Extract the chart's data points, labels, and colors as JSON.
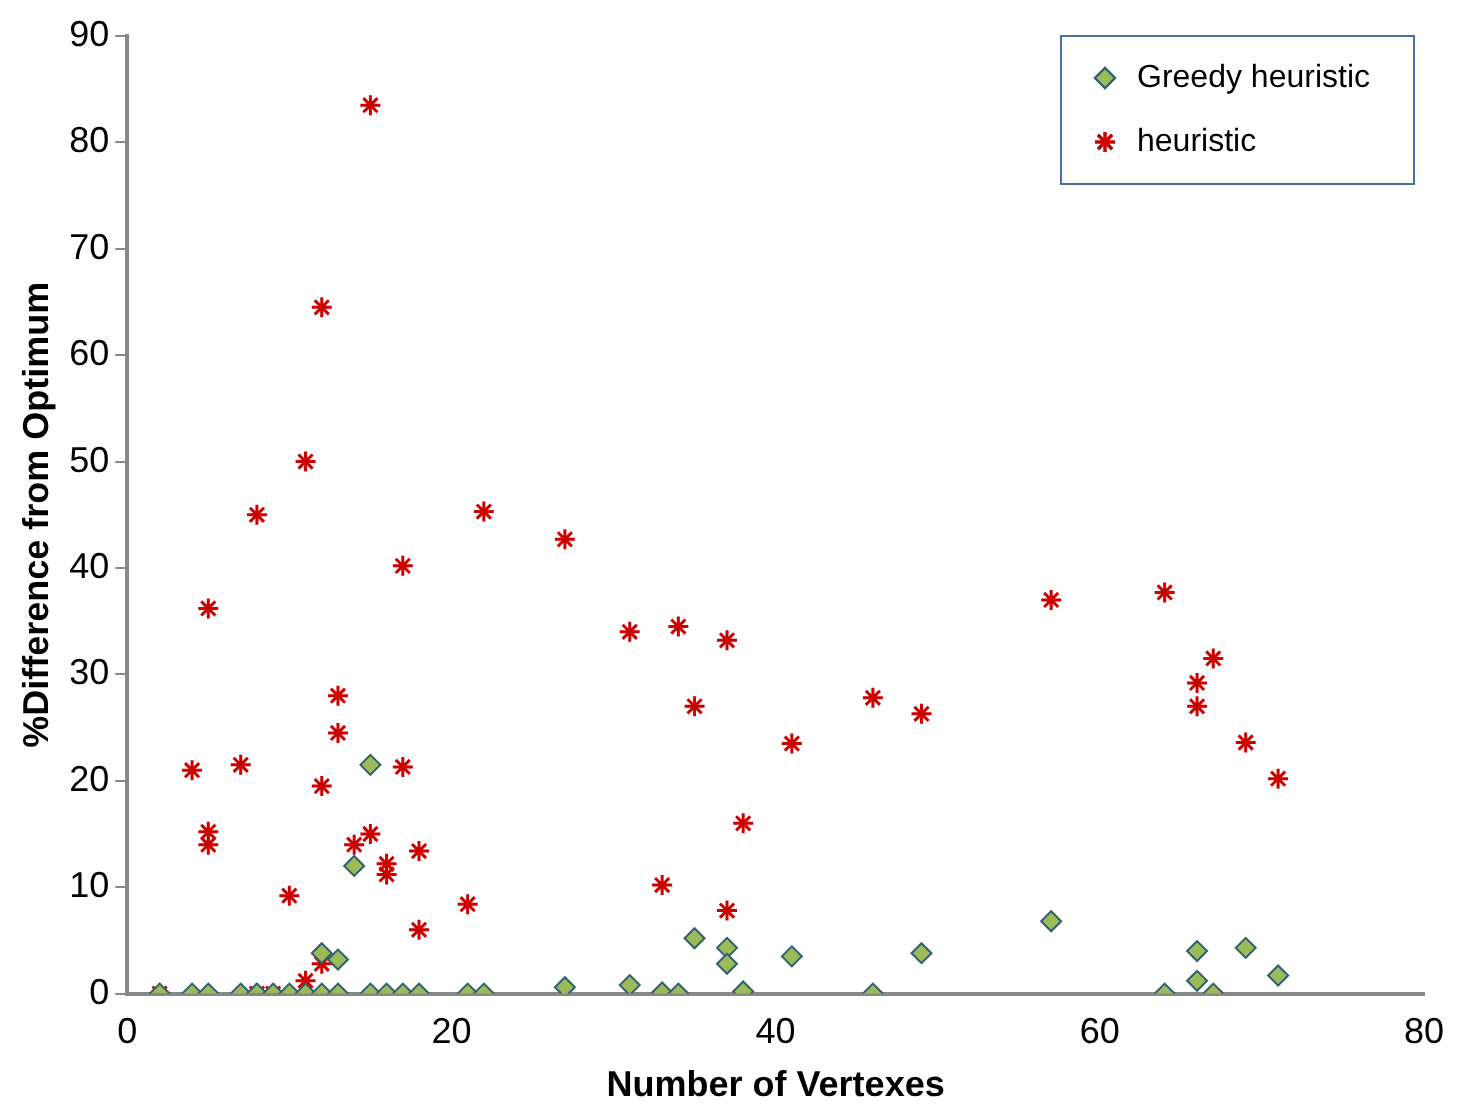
{
  "chart_data": {
    "type": "scatter",
    "xlabel": "Number of Vertexes",
    "ylabel": "%Difference from Optimum",
    "xlim": [
      0,
      80
    ],
    "xticks": [
      0,
      20,
      40,
      60,
      80
    ],
    "ylim": [
      0,
      90
    ],
    "yticks": [
      0,
      10,
      20,
      30,
      40,
      50,
      60,
      70,
      80,
      90
    ],
    "grid": false,
    "legend": "top right",
    "series": [
      {
        "name": "Greedy heuristic",
        "color": "#9bbb59",
        "marker": "diamond",
        "x": [
          2,
          4,
          5,
          7,
          8,
          9,
          10,
          11,
          12,
          13,
          12,
          13,
          14,
          15,
          15,
          16,
          17,
          18,
          21,
          22,
          27,
          31,
          33,
          34,
          35,
          37,
          37,
          38,
          41,
          46,
          49,
          57,
          64,
          66,
          66,
          67,
          69,
          71
        ],
        "values": [
          0,
          0,
          0,
          0,
          0,
          0,
          0,
          0,
          3.8,
          3.2,
          0,
          0,
          12,
          21.5,
          0,
          0,
          0,
          0,
          0,
          0,
          0.6,
          0.8,
          0.1,
          0,
          5.2,
          4.3,
          2.8,
          0.2,
          3.5,
          0,
          3.8,
          6.8,
          0,
          4,
          1.2,
          0,
          4.3,
          1.7
        ]
      },
      {
        "name": "heuristic",
        "color": "#cc0000",
        "marker": "cross",
        "x": [
          2,
          4,
          5,
          5,
          5,
          7,
          8,
          8,
          9,
          10,
          11,
          11,
          12,
          12,
          12,
          13,
          13,
          14,
          15,
          15,
          16,
          16,
          17,
          17,
          18,
          18,
          21,
          22,
          27,
          31,
          33,
          34,
          35,
          37,
          37,
          38,
          41,
          46,
          49,
          57,
          64,
          66,
          66,
          67,
          69,
          71
        ],
        "values": [
          0,
          21,
          36.2,
          15.2,
          14,
          21.5,
          45,
          0,
          0,
          9.2,
          50,
          1.2,
          64.5,
          19.5,
          2.8,
          28,
          24.5,
          14,
          83.5,
          15,
          12.2,
          11.2,
          40.2,
          21.3,
          13.4,
          6,
          8.4,
          45.3,
          42.7,
          34,
          10.2,
          34.5,
          27,
          33.2,
          7.8,
          16,
          23.5,
          27.8,
          26.3,
          37,
          37.7,
          29.2,
          27,
          31.5,
          23.6,
          20.2
        ]
      }
    ]
  }
}
